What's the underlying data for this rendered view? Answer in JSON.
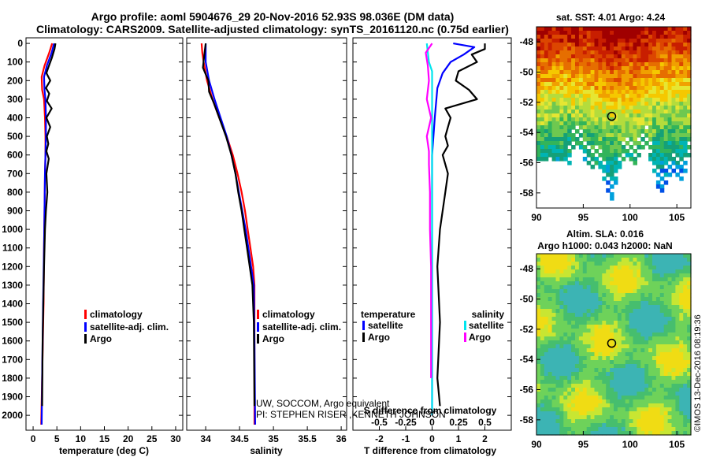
{
  "title": {
    "line1": "Argo profile: aoml 5904676_29 20-Nov-2016 52.93S 98.036E (DM data)",
    "line2": "Climatology: CARS2009. Satellite-adjusted climatology: synTS_20161120.nc (0.75d earlier)"
  },
  "colors": {
    "climatology": "#ff0000",
    "satellite_adj": "#0000ff",
    "argo": "#000000",
    "sal_satellite": "#00e5ee",
    "sal_argo": "#ff00ff"
  },
  "chart_data": [
    {
      "type": "line",
      "id": "temperature",
      "xlabel": "temperature (deg C)",
      "ylabel": "",
      "xlim": [
        -1.5,
        31.5
      ],
      "ylim": [
        2080,
        -30
      ],
      "xticks": [
        0,
        5,
        10,
        15,
        20,
        25,
        30
      ],
      "yticks": [
        0,
        100,
        200,
        300,
        400,
        500,
        600,
        700,
        800,
        900,
        1000,
        1100,
        1200,
        1300,
        1400,
        1500,
        1600,
        1700,
        1800,
        1900,
        2000
      ],
      "legend": {
        "position": "bottom-right",
        "entries": [
          "climatology",
          "satellite-adj. clim.",
          "Argo"
        ]
      },
      "series": [
        {
          "name": "climatology",
          "color": "#ff0000",
          "x": [
            4.0,
            3.4,
            2.4,
            1.8,
            1.9,
            2.3,
            2.5,
            2.6,
            2.6,
            2.5,
            2.4,
            2.3,
            2.2,
            1.9,
            1.7
          ],
          "y": [
            0,
            50,
            120,
            180,
            250,
            300,
            400,
            500,
            600,
            700,
            900,
            1100,
            1400,
            1800,
            2050
          ]
        },
        {
          "name": "satellite-adj. clim.",
          "color": "#0000ff",
          "x": [
            4.4,
            3.9,
            2.9,
            2.3,
            2.4,
            2.6,
            2.7,
            2.7,
            2.6,
            2.5,
            2.4,
            2.3,
            2.1,
            1.9,
            1.8
          ],
          "y": [
            0,
            50,
            120,
            180,
            250,
            300,
            400,
            500,
            600,
            700,
            900,
            1100,
            1400,
            1800,
            2050
          ]
        },
        {
          "name": "Argo",
          "color": "#000000",
          "x": [
            4.7,
            4.5,
            3.9,
            3.2,
            2.8,
            3.6,
            2.7,
            3.4,
            2.9,
            3.9,
            2.8,
            3.6,
            2.9,
            3.2,
            2.8,
            3.3,
            2.8,
            3.0,
            2.7,
            2.5,
            2.3,
            2.0,
            1.9
          ],
          "y": [
            0,
            30,
            80,
            130,
            160,
            200,
            240,
            270,
            310,
            350,
            400,
            450,
            500,
            540,
            580,
            620,
            700,
            800,
            900,
            1000,
            1200,
            1600,
            1950
          ]
        }
      ]
    },
    {
      "type": "line",
      "id": "salinity",
      "xlabel": "salinity",
      "ylabel": "",
      "xlim": [
        33.72,
        36.08
      ],
      "ylim": [
        2080,
        -30
      ],
      "xticks": [
        34,
        34.5,
        35,
        35.5,
        36
      ],
      "legend": {
        "position": "bottom-right",
        "entries": [
          "climatology",
          "satellite-adj. clim.",
          "Argo"
        ]
      },
      "series": [
        {
          "name": "climatology",
          "color": "#ff0000",
          "x": [
            33.94,
            33.95,
            33.97,
            34.02,
            34.1,
            34.2,
            34.31,
            34.4,
            34.47,
            34.53,
            34.58,
            34.62,
            34.66,
            34.7,
            34.72,
            34.72,
            34.72
          ],
          "y": [
            0,
            50,
            100,
            200,
            300,
            400,
            500,
            600,
            700,
            800,
            900,
            1000,
            1100,
            1200,
            1300,
            1600,
            2050
          ]
        },
        {
          "name": "satellite-adj. clim.",
          "color": "#0000ff",
          "x": [
            34.0,
            34.0,
            34.0,
            34.05,
            34.13,
            34.22,
            34.31,
            34.38,
            34.44,
            34.49,
            34.54,
            34.59,
            34.63,
            34.67,
            34.71,
            34.72,
            34.73
          ],
          "y": [
            0,
            50,
            100,
            200,
            300,
            400,
            500,
            600,
            700,
            800,
            900,
            1000,
            1100,
            1200,
            1300,
            1600,
            2050
          ]
        },
        {
          "name": "Argo",
          "color": "#000000",
          "x": [
            34.0,
            33.98,
            33.96,
            34.04,
            34.05,
            34.12,
            34.18,
            34.3,
            34.38,
            34.44,
            34.48,
            34.53,
            34.57,
            34.61,
            34.65,
            34.69,
            34.71,
            34.72
          ],
          "y": [
            0,
            60,
            130,
            200,
            260,
            320,
            380,
            500,
            600,
            700,
            800,
            900,
            1000,
            1100,
            1200,
            1300,
            1500,
            1950
          ]
        }
      ]
    },
    {
      "type": "line",
      "id": "differences",
      "xlabel": "T difference from climatology",
      "xlabel_top": "S difference from climatology",
      "ylabel": "",
      "xlim": [
        -3,
        3
      ],
      "ylim": [
        2080,
        -30
      ],
      "xticks": [
        -2,
        -1,
        0,
        1,
        2
      ],
      "secondary_xticks": {
        "labels": [
          "-0.5",
          "-0.25",
          "0",
          "0.25",
          "0.5"
        ],
        "values": [
          -0.5,
          -0.25,
          0,
          0.25,
          0.5
        ],
        "range": [
          -0.75,
          0.75
        ]
      },
      "legend": {
        "position": "bottom",
        "temperature": {
          "title": "temperature",
          "entries": [
            "satellite",
            "Argo"
          ]
        },
        "salinity": {
          "title": "salinity",
          "entries": [
            "satellite",
            "Argo"
          ]
        }
      },
      "series": [
        {
          "name": "T satellite",
          "color": "#0000ff",
          "x": [
            0.8,
            1.6,
            1.2,
            0.7,
            0.4,
            0.2,
            0.1,
            0.0,
            0.0,
            0.0
          ],
          "y": [
            0,
            20,
            60,
            100,
            160,
            240,
            400,
            600,
            1000,
            2000
          ]
        },
        {
          "name": "T Argo",
          "color": "#000000",
          "x": [
            2.0,
            2.0,
            1.5,
            1.7,
            1.0,
            0.9,
            1.4,
            1.7,
            0.5,
            0.7,
            0.6,
            0.5,
            0.6,
            0.4,
            0.6,
            0.5,
            0.3,
            0.2,
            0.3,
            0.2,
            0.3
          ],
          "y": [
            0,
            30,
            60,
            100,
            150,
            200,
            250,
            300,
            350,
            400,
            450,
            500,
            550,
            600,
            700,
            800,
            1000,
            1200,
            1500,
            1800,
            1950
          ]
        },
        {
          "name": "S satellite",
          "color": "#00e5ee",
          "x": [
            -0.05,
            -0.04,
            -0.03,
            0.0,
            0.0,
            0.0,
            0.0,
            0.0,
            0.0
          ],
          "y": [
            0,
            50,
            100,
            150,
            200,
            300,
            500,
            1000,
            2000
          ]
        },
        {
          "name": "S Argo",
          "color": "#ff00ff",
          "x": [
            0.0,
            -0.06,
            -0.04,
            -0.03,
            -0.05,
            -0.01,
            -0.05,
            -0.03,
            -0.03,
            -0.02,
            -0.02,
            -0.01,
            -0.01,
            -0.01
          ],
          "y": [
            0,
            50,
            120,
            200,
            300,
            400,
            500,
            580,
            650,
            800,
            1000,
            1200,
            1500,
            1800
          ]
        }
      ]
    },
    {
      "type": "heatmap",
      "id": "sst_map",
      "title": "sat. SST: 4.01 Argo: 4.24",
      "xlim": [
        90,
        106.5
      ],
      "ylim": [
        -59,
        -47
      ],
      "xticks": [
        90,
        95,
        100,
        105
      ],
      "yticks": [
        -48,
        -50,
        -52,
        -54,
        -56,
        -58
      ],
      "marker": {
        "lon": 98.036,
        "lat": -52.93
      }
    },
    {
      "type": "heatmap",
      "id": "sla_map",
      "title": "Altim. SLA: 0.016",
      "subtitle": "Argo h1000: 0.043 h2000: NaN",
      "xlim": [
        90,
        106.5
      ],
      "ylim": [
        -59,
        -47
      ],
      "xticks": [
        90,
        95,
        100,
        105
      ],
      "yticks": [
        -48,
        -50,
        -52,
        -54,
        -56,
        -58
      ],
      "marker": {
        "lon": 98.036,
        "lat": -52.93
      }
    }
  ],
  "annotations": {
    "credit1": "UW, SOCCOM, Argo equivalent",
    "credit2": "PI: STEPHEN RISER ,KENNETH JOHNSON",
    "stamp": "©IMOS 13-Dec-2016 08:19:36"
  }
}
